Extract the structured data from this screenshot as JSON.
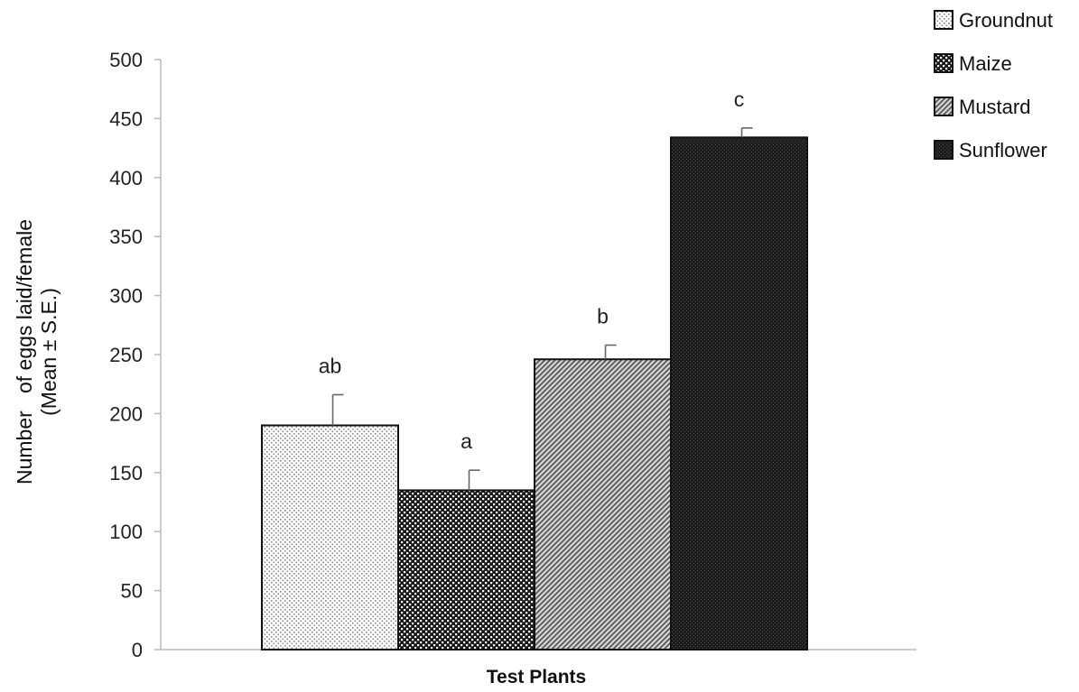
{
  "chart_data": {
    "type": "bar",
    "title": "",
    "xlabel": "Test Plants",
    "ylabel_line1": "Number   of eggs laid/female",
    "ylabel_line2": "(Mean ± S.E.)",
    "ylim": [
      0,
      500
    ],
    "yticks": [
      0,
      50,
      100,
      150,
      200,
      250,
      300,
      350,
      400,
      450,
      500
    ],
    "grid": false,
    "legend_position": "top-right",
    "series": [
      {
        "name": "Groundnut",
        "value": 190,
        "error": 26,
        "letter": "ab",
        "pattern": "dots-light"
      },
      {
        "name": "Maize",
        "value": 135,
        "error": 17,
        "letter": "a",
        "pattern": "checker"
      },
      {
        "name": "Mustard",
        "value": 246,
        "error": 12,
        "letter": "b",
        "pattern": "diagonal"
      },
      {
        "name": "Sunflower",
        "value": 434,
        "error": 8,
        "letter": "c",
        "pattern": "dark"
      }
    ]
  }
}
